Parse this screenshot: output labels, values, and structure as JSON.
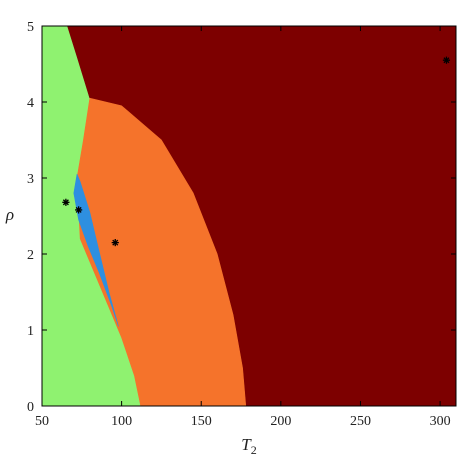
{
  "chart_data": {
    "type": "region-map",
    "title": "",
    "xlabel": "T",
    "xlabel_subscript": "2",
    "ylabel": "ρ",
    "xlim": [
      50,
      310
    ],
    "ylim": [
      0,
      5
    ],
    "xticks": [
      50,
      100,
      150,
      200,
      250,
      300
    ],
    "yticks": [
      0,
      1,
      2,
      3,
      4,
      5
    ],
    "grid": false,
    "legend": "none",
    "colors": {
      "green": "#8ff270",
      "orange": "#f5732b",
      "blue": "#2e8fe0",
      "darkred": "#7d0000"
    },
    "regions": [
      {
        "color": "green",
        "boundary": [
          [
            50,
            0
          ],
          [
            50,
            5
          ],
          [
            66,
            5
          ],
          [
            72,
            4.6
          ],
          [
            80,
            4.05
          ],
          [
            76,
            3.5
          ],
          [
            72,
            3.0
          ],
          [
            74,
            2.2
          ],
          [
            86,
            1.6
          ],
          [
            100,
            0.9
          ],
          [
            108,
            0.4
          ],
          [
            112,
            0
          ]
        ]
      },
      {
        "color": "darkred",
        "boundary": [
          [
            66,
            5
          ],
          [
            310,
            5
          ],
          [
            310,
            0
          ],
          [
            178,
            0
          ],
          [
            176,
            0.5
          ],
          [
            170,
            1.2
          ],
          [
            160,
            2.0
          ],
          [
            145,
            2.8
          ],
          [
            125,
            3.5
          ],
          [
            100,
            3.95
          ],
          [
            80,
            4.05
          ],
          [
            72,
            4.6
          ]
        ]
      },
      {
        "color": "orange",
        "boundary": [
          [
            80,
            4.05
          ],
          [
            100,
            3.95
          ],
          [
            125,
            3.5
          ],
          [
            145,
            2.8
          ],
          [
            160,
            2.0
          ],
          [
            170,
            1.2
          ],
          [
            176,
            0.5
          ],
          [
            178,
            0
          ],
          [
            112,
            0
          ],
          [
            108,
            0.4
          ],
          [
            100,
            0.9
          ],
          [
            86,
            1.6
          ],
          [
            74,
            2.2
          ],
          [
            72,
            3.0
          ],
          [
            76,
            3.5
          ]
        ]
      },
      {
        "color": "blue",
        "boundary": [
          [
            72,
            3.05
          ],
          [
            74,
            2.95
          ],
          [
            80,
            2.55
          ],
          [
            84,
            2.2
          ],
          [
            92,
            1.5
          ],
          [
            98,
            1.05
          ],
          [
            94,
            1.3
          ],
          [
            86,
            1.75
          ],
          [
            79,
            2.1
          ],
          [
            73,
            2.45
          ],
          [
            70,
            2.8
          ]
        ]
      }
    ],
    "points": [
      {
        "x": 65,
        "y": 2.68
      },
      {
        "x": 73,
        "y": 2.58
      },
      {
        "x": 96,
        "y": 2.15
      },
      {
        "x": 304,
        "y": 4.55
      }
    ]
  }
}
